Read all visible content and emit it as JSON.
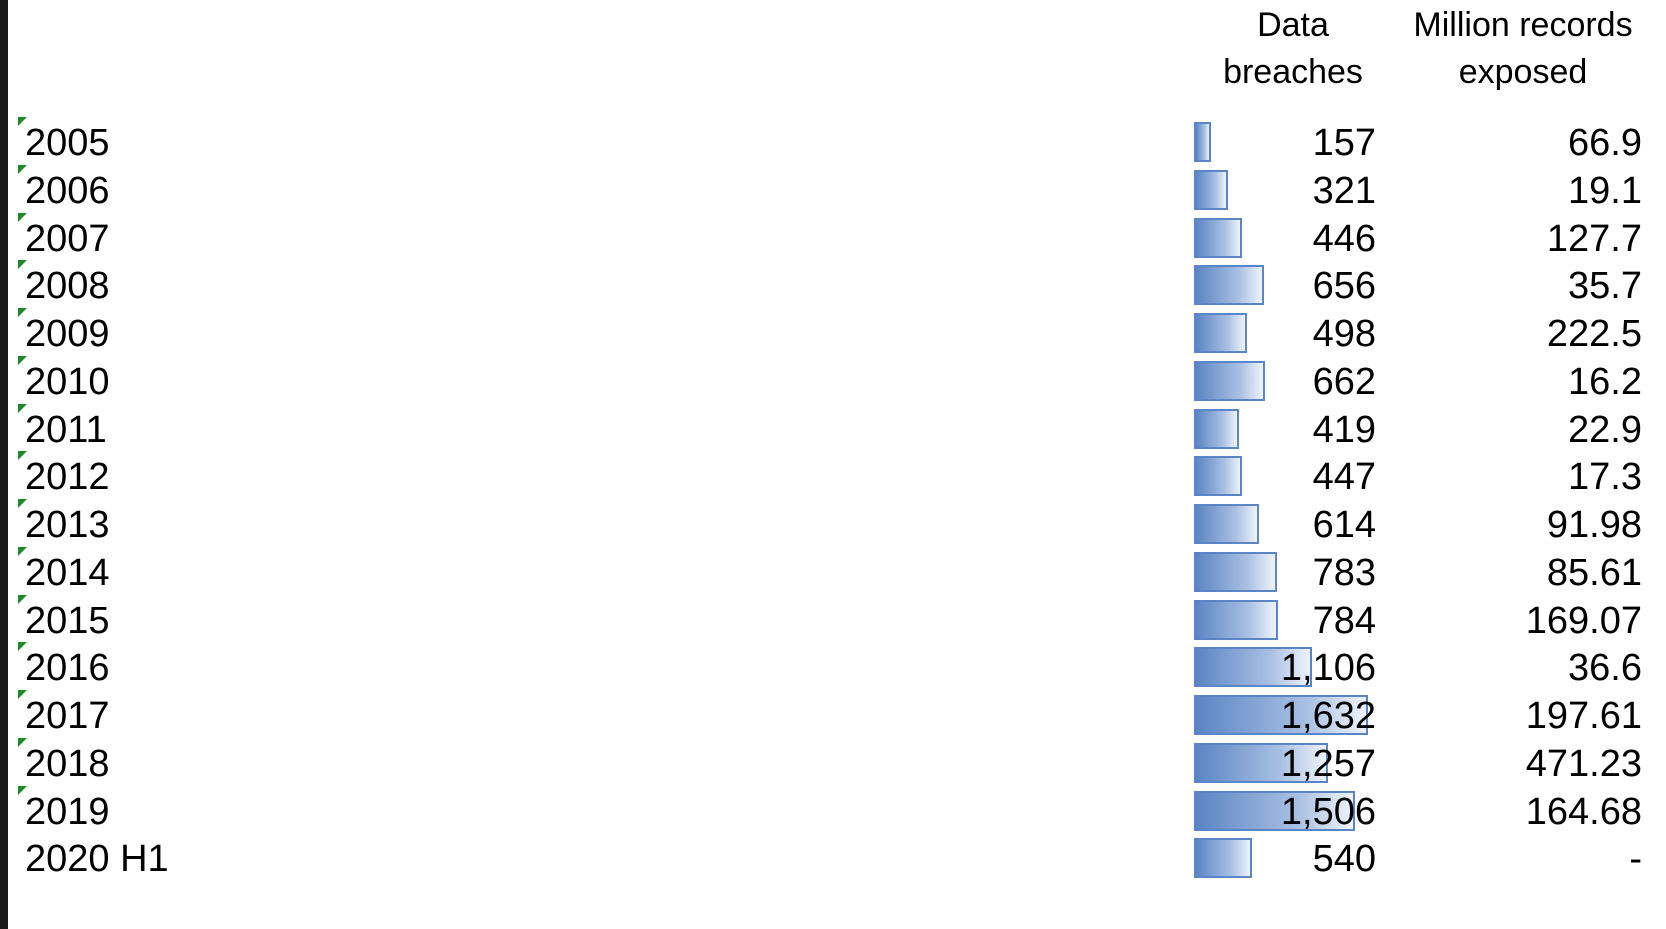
{
  "headers": {
    "breaches_line1": "Data",
    "breaches_line2": "breaches",
    "records_line1": "Million records",
    "records_line2": "exposed"
  },
  "bar_color": "#5b85c4",
  "flag_color": "#1e8a2a",
  "rows": [
    {
      "year": "2005",
      "breaches": "157",
      "breaches_value": 157,
      "records": "66.9",
      "flag": true
    },
    {
      "year": "2006",
      "breaches": "321",
      "breaches_value": 321,
      "records": "19.1",
      "flag": true
    },
    {
      "year": "2007",
      "breaches": "446",
      "breaches_value": 446,
      "records": "127.7",
      "flag": true
    },
    {
      "year": "2008",
      "breaches": "656",
      "breaches_value": 656,
      "records": "35.7",
      "flag": true
    },
    {
      "year": "2009",
      "breaches": "498",
      "breaches_value": 498,
      "records": "222.5",
      "flag": true
    },
    {
      "year": "2010",
      "breaches": "662",
      "breaches_value": 662,
      "records": "16.2",
      "flag": true
    },
    {
      "year": "2011",
      "breaches": "419",
      "breaches_value": 419,
      "records": "22.9",
      "flag": true
    },
    {
      "year": "2012",
      "breaches": "447",
      "breaches_value": 447,
      "records": "17.3",
      "flag": true
    },
    {
      "year": "2013",
      "breaches": "614",
      "breaches_value": 614,
      "records": "91.98",
      "flag": true
    },
    {
      "year": "2014",
      "breaches": "783",
      "breaches_value": 783,
      "records": "85.61",
      "flag": true
    },
    {
      "year": "2015",
      "breaches": "784",
      "breaches_value": 784,
      "records": "169.07",
      "flag": true
    },
    {
      "year": "2016",
      "breaches": "1,106",
      "breaches_value": 1106,
      "records": "36.6",
      "flag": true
    },
    {
      "year": "2017",
      "breaches": "1,632",
      "breaches_value": 1632,
      "records": "197.61",
      "flag": true
    },
    {
      "year": "2018",
      "breaches": "1,257",
      "breaches_value": 1257,
      "records": "471.23",
      "flag": true
    },
    {
      "year": "2019",
      "breaches": "1,506",
      "breaches_value": 1506,
      "records": "164.68",
      "flag": true
    },
    {
      "year": "2020 H1",
      "breaches": "540",
      "breaches_value": 540,
      "records": "-",
      "flag": false
    }
  ]
}
